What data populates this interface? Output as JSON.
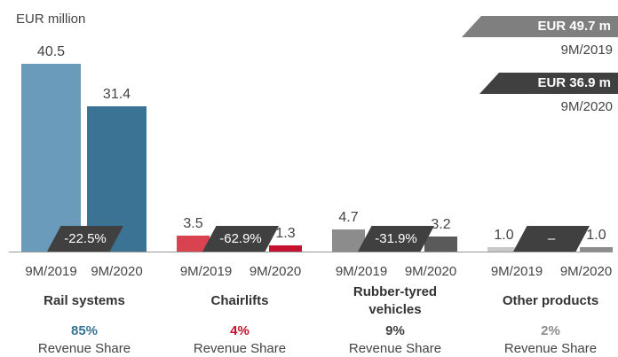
{
  "chart_data": {
    "type": "bar",
    "unit": "EUR million",
    "categories": [
      "Rail systems",
      "Chairlifts",
      "Rubber-tyred vehicles",
      "Other products"
    ],
    "series": [
      {
        "name": "9M/2019",
        "colors": [
          "#6b9bba",
          "#d9434f",
          "#8c8c8c",
          "#c8c8c8"
        ],
        "values": [
          40.5,
          3.5,
          4.7,
          1.0
        ],
        "value_labels": [
          "40.5",
          "3.5",
          "4.7",
          "1.0"
        ]
      },
      {
        "name": "9M/2020",
        "colors": [
          "#3b7395",
          "#c41230",
          "#5a5a5a",
          "#8c8c8c"
        ],
        "values": [
          31.4,
          1.3,
          3.2,
          1.0
        ],
        "value_labels": [
          "31.4",
          "1.3",
          "3.2",
          "1.0"
        ]
      }
    ],
    "changes": [
      "-22.5%",
      "-62.9%",
      "-31.9%",
      "–"
    ],
    "shares": [
      "85%",
      "4%",
      "9%",
      "2%"
    ],
    "share_colors": [
      "#3b7395",
      "#c41230",
      "#404040",
      "#8c8c8c"
    ],
    "share_label": "Revenue Share",
    "totals": [
      {
        "value": "EUR 49.7 m",
        "period": "9M/2019",
        "color": "#7f7f7f"
      },
      {
        "value": "EUR 36.9 m",
        "period": "9M/2020",
        "color": "#404040"
      }
    ]
  }
}
